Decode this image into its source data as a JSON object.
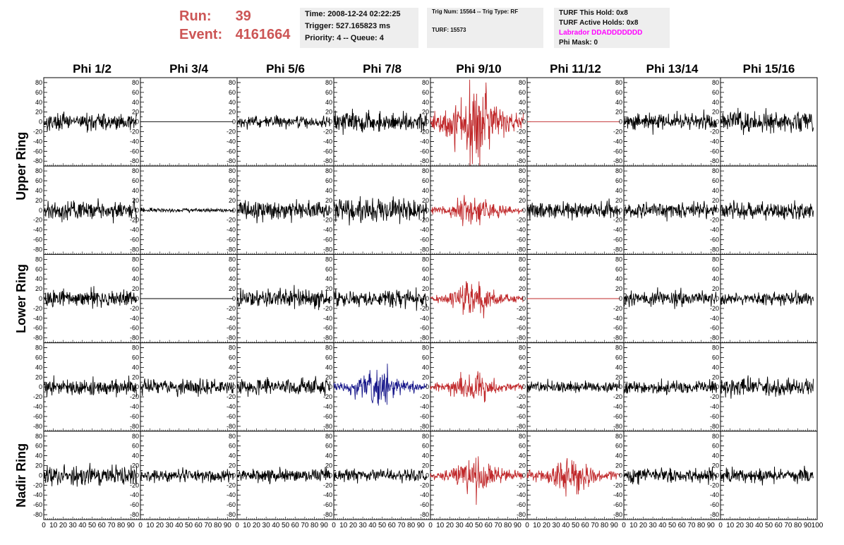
{
  "header": {
    "run_label": "Run:",
    "run_value": "39",
    "event_label": "Event:",
    "event_value": "4161664",
    "time": "Time: 2008-12-24 02:22:25",
    "trigger": "Trigger: 527.165823 ms",
    "priority": "Priority: 4 -- Queue: 4",
    "trig_num": "Trig Num: 15564 -- Trig Type: RF",
    "turf": "TURF: 15573",
    "turf_this_hold": "TURF This Hold: 0x8",
    "turf_active_holds": "TURF Active Holds: 0x8",
    "labrador": "Labrador DDADDDDDDD",
    "phi_mask": "Phi Mask: 0"
  },
  "colors": {
    "run_text": "#cc5555",
    "normal_trace": "#000000",
    "triggered_trace": "#c0282a",
    "blue_trace": "#1a1a8c",
    "labrador_text": "#ff00ff"
  },
  "chart_data": {
    "type": "line",
    "phi_labels": [
      "Phi 1/2",
      "Phi 3/4",
      "Phi 5/6",
      "Phi 7/8",
      "Phi 9/10",
      "Phi 11/12",
      "Phi 13/14",
      "Phi 15/16"
    ],
    "ring_labels": [
      "Upper Ring",
      "Lower Ring",
      "Nadir Ring"
    ],
    "xlim": [
      0,
      100
    ],
    "ylim": [
      -90,
      90
    ],
    "y_ticks": [
      "80",
      "60",
      "40",
      "20",
      "0",
      "-20",
      "-40",
      "-60",
      "-80"
    ],
    "x_tick_labels": [
      "0",
      "10",
      "20",
      "30",
      "40",
      "50",
      "60",
      "70",
      "80",
      "90",
      "100"
    ],
    "panel_rows": 5,
    "panel_cols": 8,
    "panel_amplitudes": [
      [
        12,
        0,
        8,
        14,
        40,
        0,
        12,
        15
      ],
      [
        14,
        3,
        14,
        17,
        14,
        12,
        11,
        13
      ],
      [
        12,
        0,
        13,
        12,
        15,
        0,
        11,
        9
      ],
      [
        12,
        11,
        12,
        18,
        15,
        8,
        10,
        12
      ],
      [
        13,
        9,
        9,
        10,
        18,
        17,
        11,
        10
      ]
    ],
    "panel_colors": [
      [
        "normal",
        "normal",
        "normal",
        "normal",
        "triggered",
        "triggered",
        "normal",
        "normal"
      ],
      [
        "normal",
        "normal",
        "normal",
        "normal",
        "triggered",
        "normal",
        "normal",
        "normal"
      ],
      [
        "normal",
        "normal",
        "normal",
        "normal",
        "triggered",
        "triggered",
        "normal",
        "normal"
      ],
      [
        "normal",
        "normal",
        "normal",
        "blue",
        "triggered",
        "normal",
        "normal",
        "normal"
      ],
      [
        "normal",
        "normal",
        "normal",
        "normal",
        "triggered",
        "triggered",
        "normal",
        "normal"
      ]
    ]
  }
}
